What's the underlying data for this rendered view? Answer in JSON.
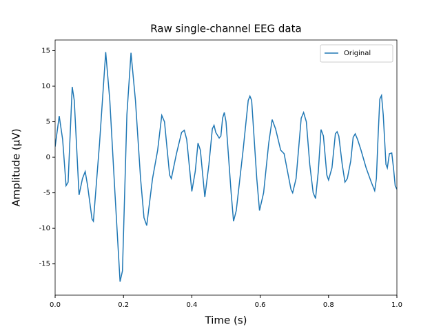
{
  "chart_data": {
    "type": "line",
    "title": "Raw single-channel EEG data",
    "xlabel": "Time (s)",
    "ylabel": "Amplitude (µV)",
    "x": [
      0.0,
      0.012,
      0.022,
      0.032,
      0.038,
      0.05,
      0.056,
      0.07,
      0.08,
      0.088,
      0.095,
      0.108,
      0.112,
      0.13,
      0.148,
      0.16,
      0.175,
      0.19,
      0.197,
      0.21,
      0.222,
      0.235,
      0.25,
      0.26,
      0.268,
      0.285,
      0.3,
      0.312,
      0.32,
      0.335,
      0.34,
      0.355,
      0.37,
      0.378,
      0.385,
      0.4,
      0.41,
      0.418,
      0.425,
      0.438,
      0.45,
      0.46,
      0.465,
      0.47,
      0.48,
      0.485,
      0.49,
      0.495,
      0.5,
      0.515,
      0.522,
      0.53,
      0.55,
      0.565,
      0.57,
      0.575,
      0.59,
      0.598,
      0.61,
      0.625,
      0.635,
      0.645,
      0.66,
      0.67,
      0.68,
      0.69,
      0.695,
      0.705,
      0.72,
      0.727,
      0.735,
      0.745,
      0.755,
      0.762,
      0.77,
      0.778,
      0.785,
      0.795,
      0.8,
      0.81,
      0.82,
      0.825,
      0.83,
      0.84,
      0.848,
      0.855,
      0.865,
      0.872,
      0.878,
      0.885,
      0.895,
      0.91,
      0.925,
      0.935,
      0.94,
      0.945,
      0.95,
      0.955,
      0.96,
      0.968,
      0.972,
      0.978,
      0.985,
      0.99,
      0.995,
      1.0
    ],
    "series": [
      {
        "name": "Original",
        "color": "#1f77b4",
        "values": [
          1.5,
          5.8,
          2.5,
          -4.0,
          -3.5,
          9.9,
          8.0,
          -5.3,
          -3.0,
          -2.0,
          -4.0,
          -8.7,
          -9.0,
          2.0,
          14.8,
          8.0,
          -5,
          -17.5,
          -16,
          6,
          14.7,
          8,
          -3,
          -8.5,
          -9.6,
          -3,
          1,
          5.9,
          5.0,
          -2.5,
          -3,
          0.5,
          3.5,
          3.8,
          2.5,
          -4.8,
          -2,
          2.0,
          1,
          -5.6,
          -1,
          4.0,
          4.5,
          3.5,
          2.7,
          3.0,
          5.5,
          6.3,
          5,
          -5,
          -9.0,
          -7.5,
          1,
          8.0,
          8.6,
          8.0,
          -3,
          -7.5,
          -5,
          2,
          5.3,
          4,
          1,
          0.5,
          -2,
          -4.5,
          -5.0,
          -3,
          5.5,
          6.3,
          5,
          -1,
          -5,
          -5.8,
          -2,
          3.9,
          3,
          -2.5,
          -3.2,
          -1.5,
          3.3,
          3.6,
          3.0,
          -1,
          -3.5,
          -3.0,
          -0.5,
          2.8,
          3.3,
          2.5,
          1,
          -1.5,
          -3.5,
          -4.7,
          -3,
          3,
          8.2,
          8.7,
          6,
          -1,
          -1.5,
          0.5,
          0.6,
          -1.5,
          -4,
          -4.5
        ]
      }
    ],
    "xlim": [
      0,
      1
    ],
    "xticks": [
      {
        "value": 0,
        "label": "0.0"
      },
      0.2,
      0.4,
      0.6,
      0.8,
      {
        "value": 1,
        "label": "1.0"
      }
    ],
    "ylim": [
      -19.4,
      16.5
    ],
    "yticks": [
      -15,
      -10,
      -5,
      0,
      5,
      10,
      15
    ],
    "legend": "upper right"
  }
}
